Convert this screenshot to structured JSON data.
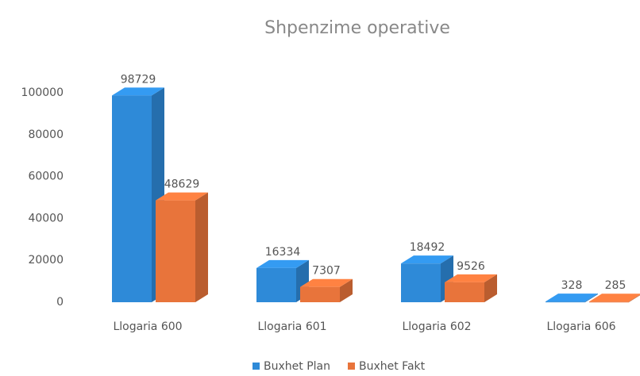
{
  "chart_data": {
    "type": "bar3d",
    "title": "Shpenzime operative",
    "categories": [
      "Llogaria 600",
      "Llogaria 601",
      "Llogaria 602",
      "Llogaria 606"
    ],
    "series": [
      {
        "name": "Buxhet Plan",
        "color": "#2e8ad8",
        "values": [
          98729,
          16334,
          18492,
          328
        ]
      },
      {
        "name": "Buxhet Fakt",
        "color": "#e8743b",
        "values": [
          48629,
          7307,
          9526,
          285
        ]
      }
    ],
    "ylim": [
      0,
      107000
    ],
    "yticks": [
      0,
      20000,
      40000,
      60000,
      80000,
      100000
    ],
    "grid": false,
    "legend": "bottom"
  }
}
